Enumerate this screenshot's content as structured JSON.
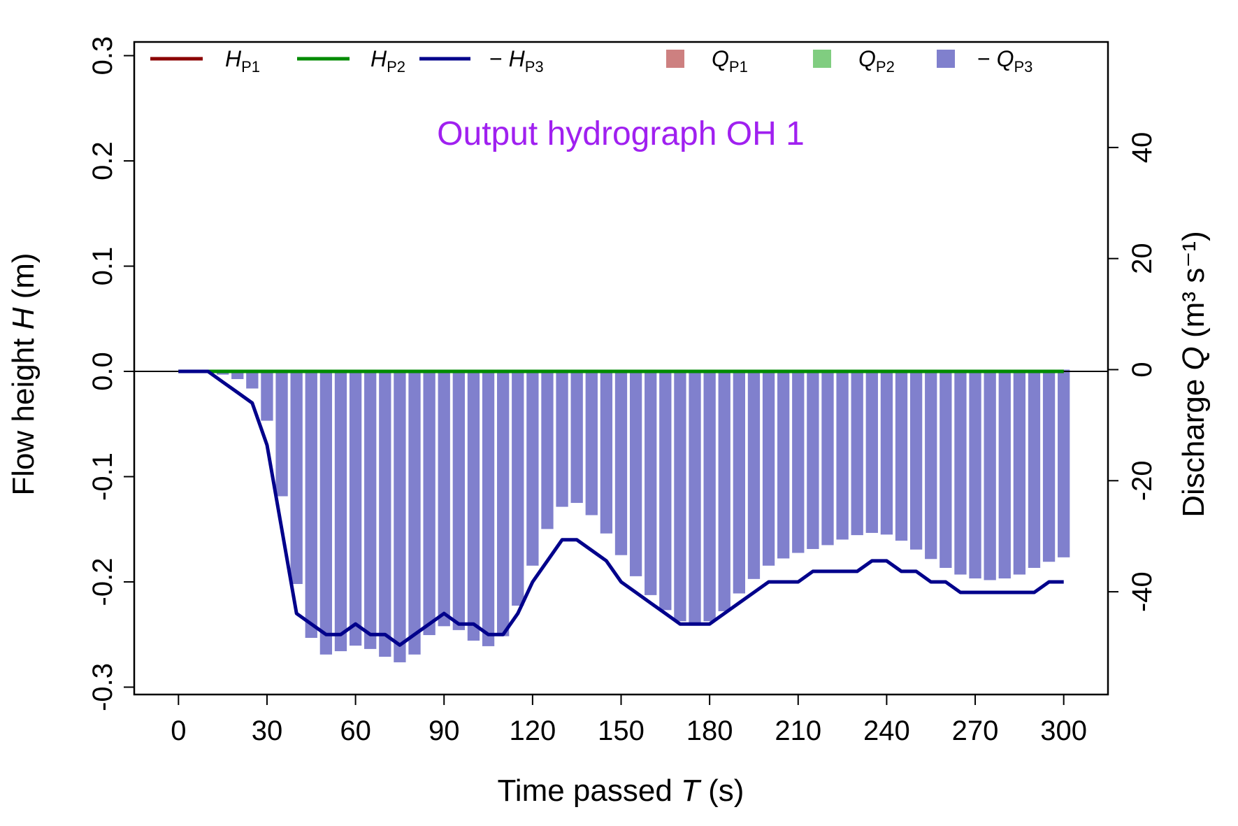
{
  "chart_data": {
    "type": "bar",
    "title": "Output hydrograph OH 1",
    "colors": {
      "title": "#a020f0",
      "H_P1": "#8b0000",
      "H_P2": "#008b00",
      "H_P3": "#00008b",
      "Q_P1": "#cd8080",
      "Q_P2": "#80cd80",
      "Q_P3": "#8080cd"
    },
    "x_axis": {
      "label_pre": "Time passed ",
      "label_var": "T",
      "label_post": " (s)",
      "range": [
        -15,
        315
      ],
      "ticks": [
        "0",
        "30",
        "60",
        "90",
        "120",
        "150",
        "180",
        "210",
        "240",
        "270",
        "300"
      ]
    },
    "y_left": {
      "label_pre": "Flow height ",
      "label_var": "H",
      "label_post": " (m)",
      "range": [
        -0.307,
        0.313
      ],
      "ticks": [
        "0.3",
        "0.2",
        "0.1",
        "0.0",
        "-0.1",
        "-0.2",
        "-0.3"
      ]
    },
    "y_right": {
      "label_pre": "Discharge ",
      "label_var": "Q",
      "label_unit": " (m³ s⁻¹)",
      "range": [
        -58.5,
        59.0
      ],
      "ticks": [
        "40",
        "20",
        "0",
        "-20",
        "-40"
      ]
    },
    "legend": {
      "position": "top",
      "entries": [
        {
          "kind": "line",
          "key": "H_P1",
          "prefix": "",
          "var": "H",
          "sub": "P1"
        },
        {
          "kind": "line",
          "key": "H_P2",
          "prefix": "",
          "var": "H",
          "sub": "P2"
        },
        {
          "kind": "line",
          "key": "H_P3",
          "prefix": "− ",
          "var": "H",
          "sub": "P3"
        },
        {
          "kind": "box",
          "key": "Q_P1",
          "prefix": "",
          "var": "Q",
          "sub": "P1"
        },
        {
          "kind": "box",
          "key": "Q_P2",
          "prefix": "",
          "var": "Q",
          "sub": "P2"
        },
        {
          "kind": "box",
          "key": "Q_P3",
          "prefix": "− ",
          "var": "Q",
          "sub": "P3"
        }
      ]
    },
    "series_lines": [
      {
        "name": "H_P1",
        "x": [
          0,
          300
        ],
        "y": [
          0,
          0
        ]
      },
      {
        "name": "H_P2",
        "x": [
          0,
          300
        ],
        "y": [
          0,
          0
        ]
      },
      {
        "name": "-H_P3",
        "x": [
          0,
          5,
          10,
          15,
          20,
          25,
          30,
          35,
          40,
          45,
          50,
          55,
          60,
          65,
          70,
          75,
          80,
          85,
          90,
          95,
          100,
          105,
          110,
          115,
          120,
          125,
          130,
          135,
          140,
          145,
          150,
          155,
          160,
          165,
          170,
          175,
          180,
          185,
          190,
          195,
          200,
          205,
          210,
          215,
          220,
          225,
          230,
          235,
          240,
          245,
          250,
          255,
          260,
          265,
          270,
          275,
          280,
          285,
          290,
          295,
          300
        ],
        "y": [
          0,
          0,
          0,
          -0.01,
          -0.02,
          -0.03,
          -0.07,
          -0.15,
          -0.23,
          -0.24,
          -0.25,
          -0.25,
          -0.24,
          -0.25,
          -0.25,
          -0.26,
          -0.25,
          -0.24,
          -0.23,
          -0.24,
          -0.24,
          -0.25,
          -0.25,
          -0.23,
          -0.2,
          -0.18,
          -0.16,
          -0.16,
          -0.17,
          -0.18,
          -0.2,
          -0.21,
          -0.22,
          -0.23,
          -0.24,
          -0.24,
          -0.24,
          -0.23,
          -0.22,
          -0.21,
          -0.2,
          -0.2,
          -0.2,
          -0.19,
          -0.19,
          -0.19,
          -0.19,
          -0.18,
          -0.18,
          -0.19,
          -0.19,
          -0.2,
          -0.2,
          -0.21,
          -0.21,
          -0.21,
          -0.21,
          -0.21,
          -0.21,
          -0.2,
          -0.2
        ]
      }
    ],
    "bars": {
      "name": "-Q_P3",
      "x": [
        5,
        10,
        15,
        20,
        25,
        30,
        35,
        40,
        45,
        50,
        55,
        60,
        65,
        70,
        75,
        80,
        85,
        90,
        95,
        100,
        105,
        110,
        115,
        120,
        125,
        130,
        135,
        140,
        145,
        150,
        155,
        160,
        165,
        170,
        175,
        180,
        185,
        190,
        195,
        200,
        205,
        210,
        215,
        220,
        225,
        230,
        235,
        240,
        245,
        250,
        255,
        260,
        265,
        270,
        275,
        280,
        285,
        290,
        295,
        300
      ],
      "values": [
        0,
        -0.3,
        -0.9,
        -1.7,
        -3.4,
        -9.2,
        -22.8,
        -38.6,
        -48.3,
        -51.3,
        -50.7,
        -49.7,
        -50.3,
        -51.7,
        -52.7,
        -51.3,
        -47.8,
        -46.2,
        -46.9,
        -48.8,
        -49.8,
        -48.0,
        -42.5,
        -35.3,
        -28.7,
        -24.7,
        -24.0,
        -26.2,
        -29.5,
        -33.4,
        -37.2,
        -40.6,
        -43.3,
        -45.3,
        -46.1,
        -45.3,
        -43.5,
        -40.3,
        -37.7,
        -35.3,
        -34.0,
        -33.0,
        -32.3,
        -31.6,
        -30.6,
        -29.8,
        -29.4,
        -29.7,
        -30.8,
        -32.4,
        -34.1,
        -35.7,
        -36.9,
        -37.6,
        -37.9,
        -37.6,
        -36.9,
        -35.7,
        -34.6,
        -33.8
      ]
    }
  }
}
